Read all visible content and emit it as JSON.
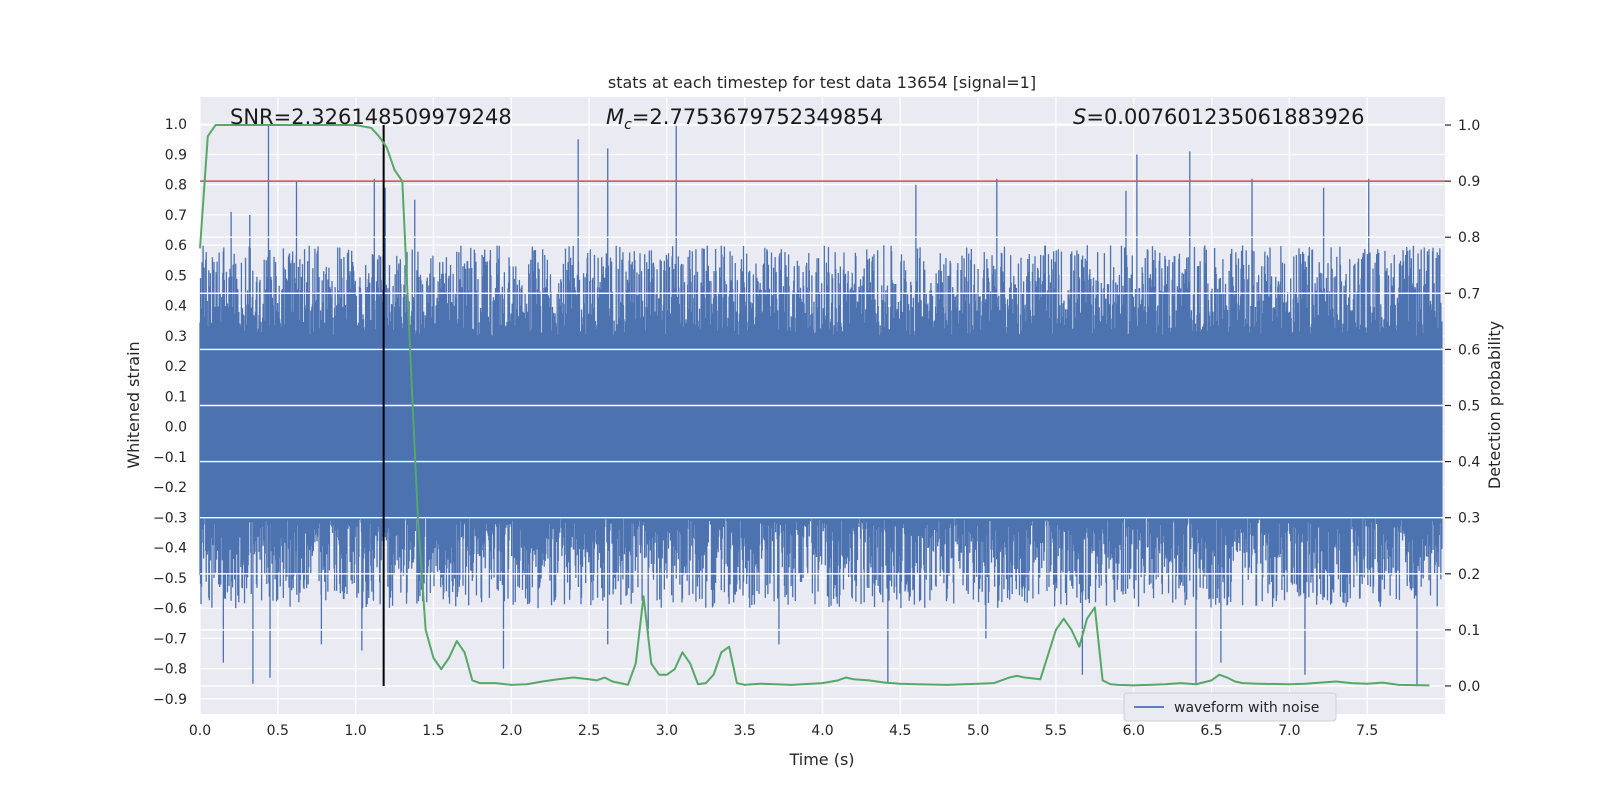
{
  "chart_data": {
    "type": "line",
    "title": "stats at each timestep for test data 13654 [signal=1]",
    "xlabel": "Time (s)",
    "ylabel": "Whitened strain",
    "ylabel_right": "Detection probability",
    "xlim": [
      0.0,
      8.0
    ],
    "ylim": [
      -0.95,
      1.09
    ],
    "ylim_right": [
      -0.05,
      1.05
    ],
    "x_ticks": [
      "0.0",
      "0.5",
      "1.0",
      "1.5",
      "2.0",
      "2.5",
      "3.0",
      "3.5",
      "4.0",
      "4.5",
      "5.0",
      "5.5",
      "6.0",
      "6.5",
      "7.0",
      "7.5"
    ],
    "x_tick_values": [
      0.0,
      0.5,
      1.0,
      1.5,
      2.0,
      2.5,
      3.0,
      3.5,
      4.0,
      4.5,
      5.0,
      5.5,
      6.0,
      6.5,
      7.0,
      7.5
    ],
    "y_ticks": [
      "1.0",
      "0.9",
      "0.8",
      "0.7",
      "0.6",
      "0.5",
      "0.4",
      "0.3",
      "0.2",
      "0.1",
      "0.0",
      "−0.1",
      "−0.2",
      "−0.3",
      "−0.4",
      "−0.5",
      "−0.6",
      "−0.7",
      "−0.8",
      "−0.9"
    ],
    "y_tick_values": [
      1.0,
      0.9,
      0.8,
      0.7,
      0.6,
      0.5,
      0.4,
      0.3,
      0.2,
      0.1,
      0.0,
      -0.1,
      -0.2,
      -0.3,
      -0.4,
      -0.5,
      -0.6,
      -0.7,
      -0.8,
      -0.9
    ],
    "y_right_ticks": [
      "1.0",
      "0.9",
      "0.8",
      "0.7",
      "0.6",
      "0.5",
      "0.4",
      "0.3",
      "0.2",
      "0.1",
      "0.0"
    ],
    "y_right_tick_values": [
      1.0,
      0.9,
      0.8,
      0.7,
      0.6,
      0.5,
      0.4,
      0.3,
      0.2,
      0.1,
      0.0
    ],
    "annotations": {
      "snr": "SNR=2.326148509979248",
      "mc_symbol": "M",
      "mc_sub": "c",
      "mc_value": "=2.7753679752349854",
      "s_symbol": "S",
      "s_value": "=0.007601235061883926"
    },
    "legend": {
      "label": "waveform with noise",
      "location": "lower right"
    },
    "threshold_probability": 0.9,
    "marker_time": 1.18,
    "series": [
      {
        "name": "waveform with noise",
        "axis": "left",
        "color": "#4c72b0",
        "envelope_note": "dense noise sampled across 0–8 s; core band about ±0.3, typical upper edge 0.35–0.55, lower edge −0.35 to −0.55",
        "peaks_up": [
          [
            0.44,
            1.0
          ],
          [
            0.62,
            0.81
          ],
          [
            1.12,
            0.82
          ],
          [
            1.19,
            0.79
          ],
          [
            2.43,
            0.95
          ],
          [
            2.62,
            0.92
          ],
          [
            3.06,
            1.0
          ],
          [
            4.6,
            0.8
          ],
          [
            5.12,
            0.82
          ],
          [
            5.95,
            0.78
          ],
          [
            6.02,
            0.9
          ],
          [
            6.36,
            0.91
          ],
          [
            6.76,
            0.82
          ],
          [
            7.51,
            0.82
          ],
          [
            7.22,
            0.79
          ],
          [
            1.38,
            0.75
          ],
          [
            0.2,
            0.71
          ],
          [
            0.32,
            0.7
          ]
        ],
        "peaks_down": [
          [
            0.15,
            -0.78
          ],
          [
            0.34,
            -0.85
          ],
          [
            0.45,
            -0.83
          ],
          [
            0.78,
            -0.72
          ],
          [
            1.04,
            -0.74
          ],
          [
            1.95,
            -0.8
          ],
          [
            2.62,
            -0.72
          ],
          [
            2.88,
            -0.7
          ],
          [
            4.42,
            -0.85
          ],
          [
            5.67,
            -0.82
          ],
          [
            6.4,
            -0.86
          ],
          [
            6.56,
            -0.78
          ],
          [
            7.1,
            -0.82
          ],
          [
            7.82,
            -0.86
          ],
          [
            3.72,
            -0.72
          ],
          [
            5.05,
            -0.7
          ]
        ]
      },
      {
        "name": "detection probability",
        "axis": "right",
        "color": "#55a868",
        "x": [
          0.0,
          0.05,
          0.1,
          0.2,
          0.4,
          0.6,
          0.8,
          1.0,
          1.1,
          1.15,
          1.2,
          1.25,
          1.3,
          1.35,
          1.4,
          1.45,
          1.5,
          1.55,
          1.6,
          1.65,
          1.7,
          1.75,
          1.8,
          1.9,
          2.0,
          2.1,
          2.2,
          2.3,
          2.4,
          2.5,
          2.55,
          2.6,
          2.65,
          2.7,
          2.75,
          2.8,
          2.85,
          2.9,
          2.95,
          3.0,
          3.05,
          3.1,
          3.15,
          3.2,
          3.25,
          3.3,
          3.35,
          3.4,
          3.45,
          3.5,
          3.55,
          3.6,
          3.8,
          4.0,
          4.1,
          4.15,
          4.2,
          4.3,
          4.4,
          4.5,
          4.6,
          4.8,
          5.0,
          5.1,
          5.2,
          5.25,
          5.3,
          5.4,
          5.5,
          5.55,
          5.6,
          5.65,
          5.7,
          5.75,
          5.8,
          5.85,
          5.9,
          6.0,
          6.1,
          6.2,
          6.3,
          6.4,
          6.5,
          6.55,
          6.6,
          6.65,
          6.7,
          6.8,
          7.0,
          7.1,
          7.2,
          7.3,
          7.4,
          7.5,
          7.6,
          7.7,
          7.9
        ],
        "values": [
          0.78,
          0.98,
          1.0,
          1.0,
          1.0,
          1.0,
          1.0,
          1.0,
          0.995,
          0.98,
          0.96,
          0.92,
          0.9,
          0.6,
          0.3,
          0.1,
          0.05,
          0.03,
          0.05,
          0.08,
          0.06,
          0.01,
          0.005,
          0.005,
          0.002,
          0.003,
          0.008,
          0.012,
          0.015,
          0.012,
          0.01,
          0.015,
          0.008,
          0.005,
          0.002,
          0.04,
          0.16,
          0.04,
          0.02,
          0.02,
          0.03,
          0.06,
          0.04,
          0.003,
          0.005,
          0.02,
          0.06,
          0.07,
          0.005,
          0.002,
          0.003,
          0.004,
          0.002,
          0.005,
          0.01,
          0.015,
          0.012,
          0.01,
          0.006,
          0.004,
          0.003,
          0.002,
          0.004,
          0.005,
          0.015,
          0.018,
          0.015,
          0.012,
          0.1,
          0.12,
          0.1,
          0.07,
          0.12,
          0.14,
          0.01,
          0.003,
          0.002,
          0.001,
          0.002,
          0.003,
          0.005,
          0.003,
          0.01,
          0.02,
          0.015,
          0.008,
          0.005,
          0.004,
          0.003,
          0.004,
          0.006,
          0.008,
          0.005,
          0.004,
          0.006,
          0.002,
          0.001
        ]
      }
    ]
  }
}
